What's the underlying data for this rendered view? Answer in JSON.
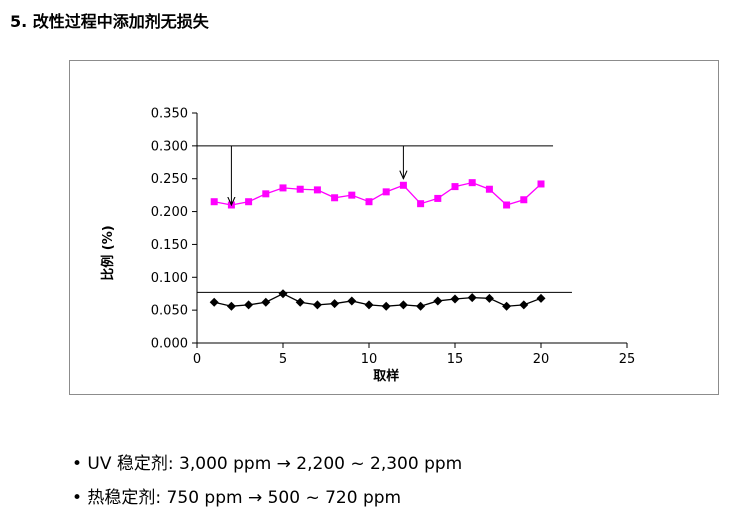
{
  "page": {
    "title": "5. 改性过程中添加剂无损失"
  },
  "chart_data": {
    "type": "line",
    "title": "",
    "xlabel": "取样",
    "ylabel": "比例 (%)",
    "xlim": [
      0,
      25
    ],
    "ylim": [
      0,
      0.35
    ],
    "x_ticks": [
      "0",
      "5",
      "10",
      "15",
      "20",
      "25"
    ],
    "y_ticks": [
      "0.000",
      "0.050",
      "0.100",
      "0.150",
      "0.200",
      "0.250",
      "0.300",
      "0.350"
    ],
    "grid": false,
    "x": [
      1,
      2,
      3,
      4,
      5,
      6,
      7,
      8,
      9,
      10,
      11,
      12,
      13,
      14,
      15,
      16,
      17,
      18,
      19,
      20
    ],
    "series": [
      {
        "marker": "square",
        "color": "#ff00ff",
        "values": [
          0.215,
          0.21,
          0.215,
          0.227,
          0.236,
          0.234,
          0.233,
          0.221,
          0.225,
          0.215,
          0.23,
          0.24,
          0.212,
          0.22,
          0.238,
          0.244,
          0.234,
          0.21,
          0.218,
          0.242
        ]
      },
      {
        "marker": "diamond",
        "color": "#000000",
        "values": [
          0.062,
          0.056,
          0.058,
          0.062,
          0.075,
          0.062,
          0.058,
          0.06,
          0.064,
          0.058,
          0.056,
          0.058,
          0.056,
          0.064,
          0.067,
          0.069,
          0.068,
          0.056,
          0.058,
          0.068
        ]
      }
    ],
    "reference_lines": [
      {
        "y": 0.3,
        "x_start": 0,
        "x_end": 20.7
      },
      {
        "y": 0.077,
        "x_start": 0,
        "x_end": 21.8
      }
    ],
    "arrows": [
      {
        "x": 2,
        "y_from": 0.3,
        "y_to": 0.21
      },
      {
        "x": 12,
        "y_from": 0.3,
        "y_to": 0.25
      }
    ]
  },
  "bullets": [
    "• UV 稳定剂: 3,000 ppm → 2,200 ~ 2,300 ppm",
    "• 热稳定剂: 750 ppm → 500 ~ 720 ppm"
  ]
}
